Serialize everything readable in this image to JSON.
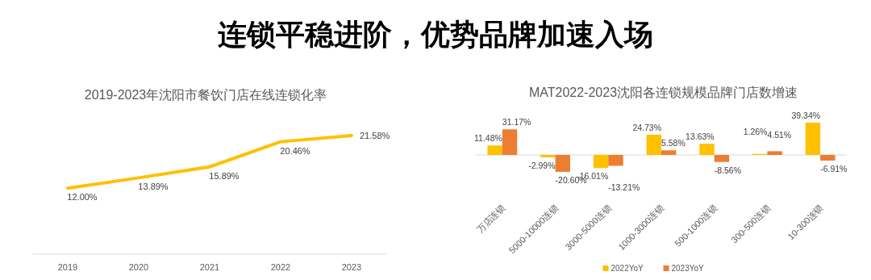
{
  "chart_data": [
    {
      "type": "other",
      "title": "连锁平稳进阶，优势品牌加速入场"
    },
    {
      "type": "line",
      "title": "2019-2023年沈阳市餐饮门店在线连锁化率",
      "categories": [
        "2019",
        "2020",
        "2021",
        "2022",
        "2023"
      ],
      "series": [
        {
          "color": "#ffc000",
          "values": [
            12.0,
            13.89,
            15.89,
            20.46,
            21.58
          ],
          "value_labels": [
            "12.00%",
            "13.89%",
            "15.89%",
            "20.46%",
            "21.58%"
          ]
        }
      ],
      "marker": "none"
    },
    {
      "type": "bar",
      "title": "MAT2022-2023沈阳各连锁规模品牌门店数增速",
      "categories": [
        "万店连锁",
        "5000-10000连锁",
        "3000-5000连锁",
        "1000-3000连锁",
        "500-1000连锁",
        "300-500连锁",
        "10-300连锁"
      ],
      "series": [
        {
          "name": "2022YoY",
          "color": "#ffc000",
          "values": [
            11.48,
            -2.99,
            -16.01,
            24.73,
            13.63,
            1.26,
            39.34
          ],
          "value_labels": [
            "11.48%",
            "-2.99%",
            "-16.01%",
            "24.73%",
            "13.63%",
            "1.26%",
            "39.34%"
          ]
        },
        {
          "name": "2023YoY",
          "color": "#ed7d31",
          "values": [
            31.17,
            -20.6,
            -13.21,
            5.58,
            -8.56,
            4.51,
            -6.91
          ],
          "value_labels": [
            "31.17%",
            "-20.60%",
            "-13.21%",
            "5.58%",
            "-8.56%",
            "4.51%",
            "-6.91%"
          ]
        }
      ],
      "legend": "bottom"
    }
  ]
}
